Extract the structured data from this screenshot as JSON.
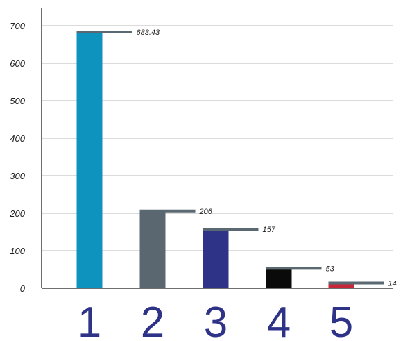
{
  "chart_data": {
    "type": "bar",
    "categories": [
      "1",
      "2",
      "3",
      "4",
      "5"
    ],
    "values": [
      683.43,
      206,
      157,
      53,
      14
    ],
    "value_labels": [
      "683.43",
      "206",
      "157",
      "53",
      "14"
    ],
    "yticks": [
      0,
      100,
      200,
      300,
      400,
      500,
      600,
      700
    ],
    "ylim": [
      0,
      750
    ],
    "grid": true,
    "colors": {
      "bars": [
        "#0e93bf",
        "#5b6770",
        "#2e3387",
        "#0a0a0a",
        "#c8273a"
      ],
      "value_marker": "#5a6872",
      "grid": "#b7b7b7",
      "axis": "#6f6f6f",
      "category_label": "#2e3387"
    }
  }
}
